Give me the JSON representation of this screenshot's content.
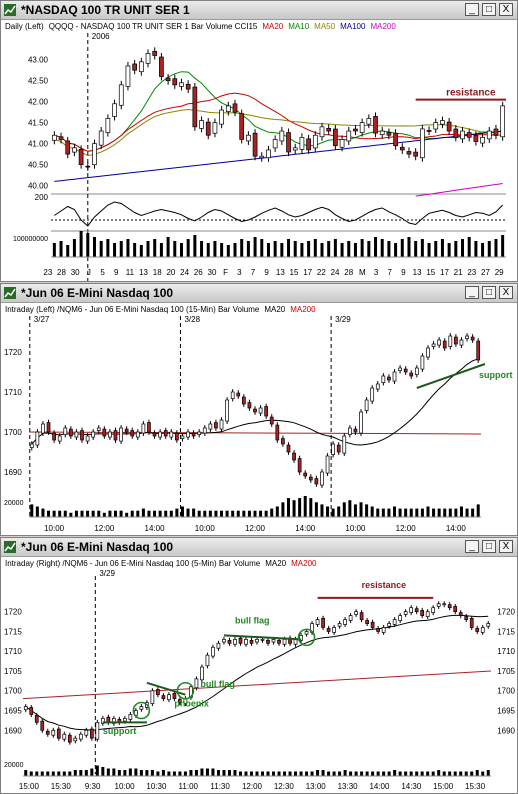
{
  "windows": [
    {
      "title": "*NASDAQ 100 TR UNIT SER 1",
      "buttons": [
        "_",
        "□",
        "X"
      ],
      "header": [
        {
          "text": "Daily  (Left)",
          "color": "#000000"
        },
        {
          "text": "QQQQ - NASDAQ 100 TR UNIT SER 1  Bar  Volume  CCI15",
          "color": "#000000"
        },
        {
          "text": "MA20",
          "color": "#cc0000"
        },
        {
          "text": "MA10",
          "color": "#008800"
        },
        {
          "text": "MA50",
          "color": "#888800"
        },
        {
          "text": "MA100",
          "color": "#000099"
        },
        {
          "text": "MA200",
          "color": "#cc00cc"
        }
      ]
    },
    {
      "title": "*Jun 06  E-Mini Nasdaq 100",
      "buttons": [
        "_",
        "□",
        "X"
      ],
      "header": [
        {
          "text": "Intraday  (Left)   /NQM6 - Jun 06  E-Mini Nasdaq 100 (15-Min)  Bar  Volume",
          "color": "#000000"
        },
        {
          "text": "MA20",
          "color": "#000000"
        },
        {
          "text": "MA200",
          "color": "#cc0000"
        }
      ]
    },
    {
      "title": "*Jun 06  E-Mini Nasdaq 100",
      "buttons": [
        "_",
        "□",
        "X"
      ],
      "header": [
        {
          "text": "Intraday  (Right)   /NQM6 - Jun 06  E-Mini Nasdaq 100 (5-Min)  Bar  Volume",
          "color": "#000000"
        },
        {
          "text": "MA20",
          "color": "#000000"
        },
        {
          "text": "MA200",
          "color": "#cc0000"
        }
      ]
    }
  ],
  "colors": {
    "up": "#ffffff",
    "down": "#aa2222",
    "annotation": "#228822",
    "resistance": "#8b1a1a"
  },
  "chart_data": [
    {
      "type": "candlestick",
      "name": "daily",
      "ylim": [
        39.8,
        43.35
      ],
      "yticks": [
        "43.00",
        "42.50",
        "42.00",
        "41.50",
        "41.00",
        "40.50",
        "40.00"
      ],
      "ytick_values": [
        43.0,
        42.5,
        42.0,
        41.5,
        41.0,
        40.5,
        40.0
      ],
      "xticks": [
        "23",
        "28",
        "30",
        "J",
        "5",
        "9",
        "11",
        "13",
        "18",
        "20",
        "24",
        "26",
        "30",
        "F",
        "3",
        "7",
        "9",
        "13",
        "15",
        "17",
        "22",
        "24",
        "28",
        "M",
        "3",
        "7",
        "9",
        "13",
        "15",
        "17",
        "21",
        "23",
        "27",
        "29"
      ],
      "year_label": "2006",
      "year_marker_index": 5,
      "close": [
        41.2,
        41.1,
        40.75,
        40.9,
        40.5,
        40.45,
        41.0,
        41.3,
        41.6,
        41.95,
        42.4,
        42.85,
        42.75,
        42.95,
        43.15,
        43.1,
        42.6,
        42.5,
        42.4,
        42.45,
        42.3,
        41.4,
        41.55,
        41.2,
        41.5,
        41.8,
        41.9,
        41.75,
        41.1,
        41.2,
        40.7,
        40.7,
        40.85,
        41.1,
        41.3,
        40.8,
        40.9,
        41.15,
        40.85,
        41.2,
        41.4,
        41.3,
        40.95,
        41.1,
        41.3,
        41.3,
        41.5,
        41.6,
        41.25,
        41.3,
        41.2,
        40.95,
        40.85,
        40.75,
        40.7,
        41.35,
        41.3,
        41.5,
        41.55,
        41.3,
        41.15,
        41.3,
        41.15,
        41.05,
        41.15,
        41.3,
        41.2,
        41.9
      ],
      "resistance": 42.05,
      "resistance_start_index": 54,
      "resistance_label": "resistance",
      "ma200": {
        "from_index": 54,
        "start": 39.75,
        "end": 40.05
      },
      "cci_mark": "200",
      "cci": [
        -20,
        40,
        100,
        60,
        -80,
        -160,
        -40,
        40,
        120,
        160,
        140,
        80,
        20,
        -20,
        10,
        40,
        60,
        40,
        20,
        -10,
        -60,
        -90,
        -40,
        20,
        60,
        40,
        -10,
        -60,
        -100,
        -80,
        -40,
        10,
        50,
        80,
        40,
        -10,
        -40,
        -20,
        20,
        60,
        90,
        60,
        -10,
        -60,
        -100,
        -80,
        -30,
        20,
        60,
        80,
        30,
        -10,
        -60,
        -120,
        -140,
        -60,
        10,
        30,
        50,
        20,
        -20,
        -40,
        -10,
        20,
        10,
        -20,
        30,
        120
      ],
      "volume_mark": "100000000",
      "volume": [
        0.7,
        0.8,
        0.6,
        0.9,
        1.3,
        1.2,
        1.0,
        0.8,
        0.9,
        0.7,
        0.8,
        0.9,
        0.7,
        0.6,
        0.8,
        0.9,
        0.7,
        1.0,
        0.8,
        0.7,
        0.9,
        1.1,
        0.8,
        0.7,
        0.8,
        0.7,
        0.6,
        0.7,
        0.9,
        0.8,
        1.0,
        0.9,
        0.7,
        0.8,
        0.7,
        0.9,
        0.8,
        0.7,
        0.8,
        0.9,
        0.7,
        0.8,
        0.9,
        0.7,
        0.8,
        0.7,
        0.9,
        0.8,
        1.0,
        0.9,
        0.8,
        0.7,
        0.9,
        1.0,
        0.8,
        0.9,
        0.7,
        0.8,
        0.9,
        0.7,
        0.8,
        0.9,
        1.0,
        0.8,
        0.7,
        0.8,
        0.9,
        1.1
      ]
    },
    {
      "type": "candlestick",
      "name": "15-min",
      "ylim": [
        1685,
        1728
      ],
      "yticks": [
        "1720",
        "1710",
        "1700",
        "1690"
      ],
      "ytick_values": [
        1720,
        1710,
        1700,
        1690
      ],
      "xticks": [
        "10:00",
        "12:00",
        "14:00",
        "10:00",
        "12:00",
        "14:00",
        "10:00",
        "12:00",
        "14:00"
      ],
      "session_labels": [
        "3/27",
        "3/28",
        "3/29"
      ],
      "session_starts": [
        0,
        27,
        54
      ],
      "close": [
        1697,
        1700,
        1702,
        1700,
        1698,
        1699,
        1701,
        1699,
        1700,
        1698,
        1699,
        1700,
        1701,
        1699,
        1700,
        1698,
        1701,
        1700,
        1699,
        1700,
        1702,
        1700,
        1699,
        1700,
        1699,
        1700,
        1698,
        1699,
        1700,
        1699,
        1700,
        1701,
        1702,
        1701,
        1703,
        1708,
        1710,
        1709,
        1707,
        1706,
        1705,
        1706,
        1704,
        1702,
        1698,
        1697,
        1695,
        1693,
        1690,
        1689,
        1688,
        1687,
        1690,
        1694,
        1697,
        1695,
        1699,
        1701,
        1700,
        1705,
        1708,
        1711,
        1712,
        1714,
        1713,
        1715,
        1716,
        1715,
        1714,
        1716,
        1719,
        1721,
        1722,
        1723,
        1721,
        1724,
        1722,
        1723,
        1724,
        1723,
        1718
      ],
      "support_label": "support",
      "ma200": {
        "start": 1700,
        "end": 1699.5
      },
      "volume_mark": "20000",
      "volume": [
        0.6,
        0.5,
        0.4,
        0.3,
        0.3,
        0.3,
        0.3,
        0.2,
        0.3,
        0.3,
        0.3,
        0.3,
        0.3,
        0.2,
        0.3,
        0.3,
        0.3,
        0.2,
        0.3,
        0.3,
        0.4,
        0.3,
        0.3,
        0.3,
        0.3,
        0.3,
        0.4,
        0.5,
        0.4,
        0.4,
        0.3,
        0.3,
        0.3,
        0.3,
        0.3,
        0.3,
        0.3,
        0.3,
        0.3,
        0.3,
        0.3,
        0.3,
        0.3,
        0.4,
        0.5,
        0.7,
        0.9,
        0.8,
        0.9,
        1.0,
        0.9,
        0.7,
        0.6,
        0.5,
        0.4,
        0.5,
        0.7,
        0.8,
        0.6,
        0.7,
        0.6,
        0.5,
        0.4,
        0.4,
        0.4,
        0.5,
        0.4,
        0.4,
        0.4,
        0.4,
        0.4,
        0.5,
        0.4,
        0.4,
        0.4,
        0.4,
        0.4,
        0.5,
        0.4,
        0.4,
        0.6
      ]
    },
    {
      "type": "candlestick",
      "name": "5-min",
      "ylim": [
        1684,
        1727
      ],
      "yticks": [
        "1720",
        "1715",
        "1710",
        "1705",
        "1700",
        "1695",
        "1690"
      ],
      "ytick_values": [
        1720,
        1715,
        1710,
        1705,
        1700,
        1695,
        1690
      ],
      "xticks": [
        "15:00",
        "15:30",
        "9:30",
        "10:00",
        "10:30",
        "11:00",
        "11:30",
        "12:00",
        "12:30",
        "13:00",
        "13:30",
        "14:00",
        "14:30",
        "15:00",
        "15:30"
      ],
      "session_label": "3/29",
      "session_start_index": 13,
      "close": [
        1696,
        1694,
        1692,
        1690,
        1689,
        1690,
        1688,
        1689,
        1687,
        1688,
        1689,
        1690,
        1688,
        1692,
        1693,
        1692,
        1693,
        1692,
        1693,
        1694,
        1695,
        1696,
        1697,
        1700,
        1699,
        1698,
        1699,
        1698,
        1697,
        1698,
        1701,
        1703,
        1706,
        1709,
        1711,
        1712,
        1713,
        1712,
        1713,
        1712,
        1713,
        1712,
        1713,
        1713,
        1712,
        1713,
        1712,
        1713,
        1712,
        1713,
        1714,
        1715,
        1717,
        1718,
        1716,
        1715,
        1716,
        1717,
        1718,
        1719,
        1720,
        1718,
        1717,
        1716,
        1715,
        1716,
        1717,
        1718,
        1719,
        1720,
        1721,
        1720,
        1719,
        1720,
        1721,
        1722,
        1722,
        1721,
        1720,
        1719,
        1718,
        1716,
        1715,
        1716,
        1717
      ],
      "ma200": {
        "start": 1698,
        "end": 1705
      },
      "resistance": 1723.5,
      "resistance_range": [
        53,
        74
      ],
      "annotations": [
        {
          "label": "support",
          "index": 18,
          "value": 1691
        },
        {
          "label": "phoenix",
          "index": 25,
          "value": 1697
        },
        {
          "label": "bull flag",
          "index": 32,
          "value": 1701
        },
        {
          "label": "bull flag",
          "index": 44,
          "value": 1717
        },
        {
          "label": "resistance",
          "index": 60,
          "value": 1724
        }
      ],
      "volume_mark": "20000",
      "volume": [
        0.4,
        0.3,
        0.3,
        0.3,
        0.3,
        0.3,
        0.3,
        0.3,
        0.3,
        0.4,
        0.4,
        0.4,
        0.5,
        0.7,
        0.6,
        0.5,
        0.5,
        0.4,
        0.4,
        0.5,
        0.5,
        0.4,
        0.4,
        0.4,
        0.3,
        0.4,
        0.3,
        0.3,
        0.3,
        0.3,
        0.4,
        0.4,
        0.5,
        0.5,
        0.5,
        0.4,
        0.4,
        0.4,
        0.4,
        0.3,
        0.3,
        0.3,
        0.3,
        0.3,
        0.3,
        0.3,
        0.3,
        0.3,
        0.3,
        0.3,
        0.3,
        0.3,
        0.3,
        0.4,
        0.4,
        0.3,
        0.3,
        0.3,
        0.4,
        0.3,
        0.3,
        0.3,
        0.3,
        0.3,
        0.3,
        0.3,
        0.3,
        0.4,
        0.3,
        0.3,
        0.3,
        0.3,
        0.3,
        0.3,
        0.3,
        0.4,
        0.3,
        0.3,
        0.3,
        0.3,
        0.3,
        0.3,
        0.4,
        0.3,
        0.4
      ]
    }
  ]
}
